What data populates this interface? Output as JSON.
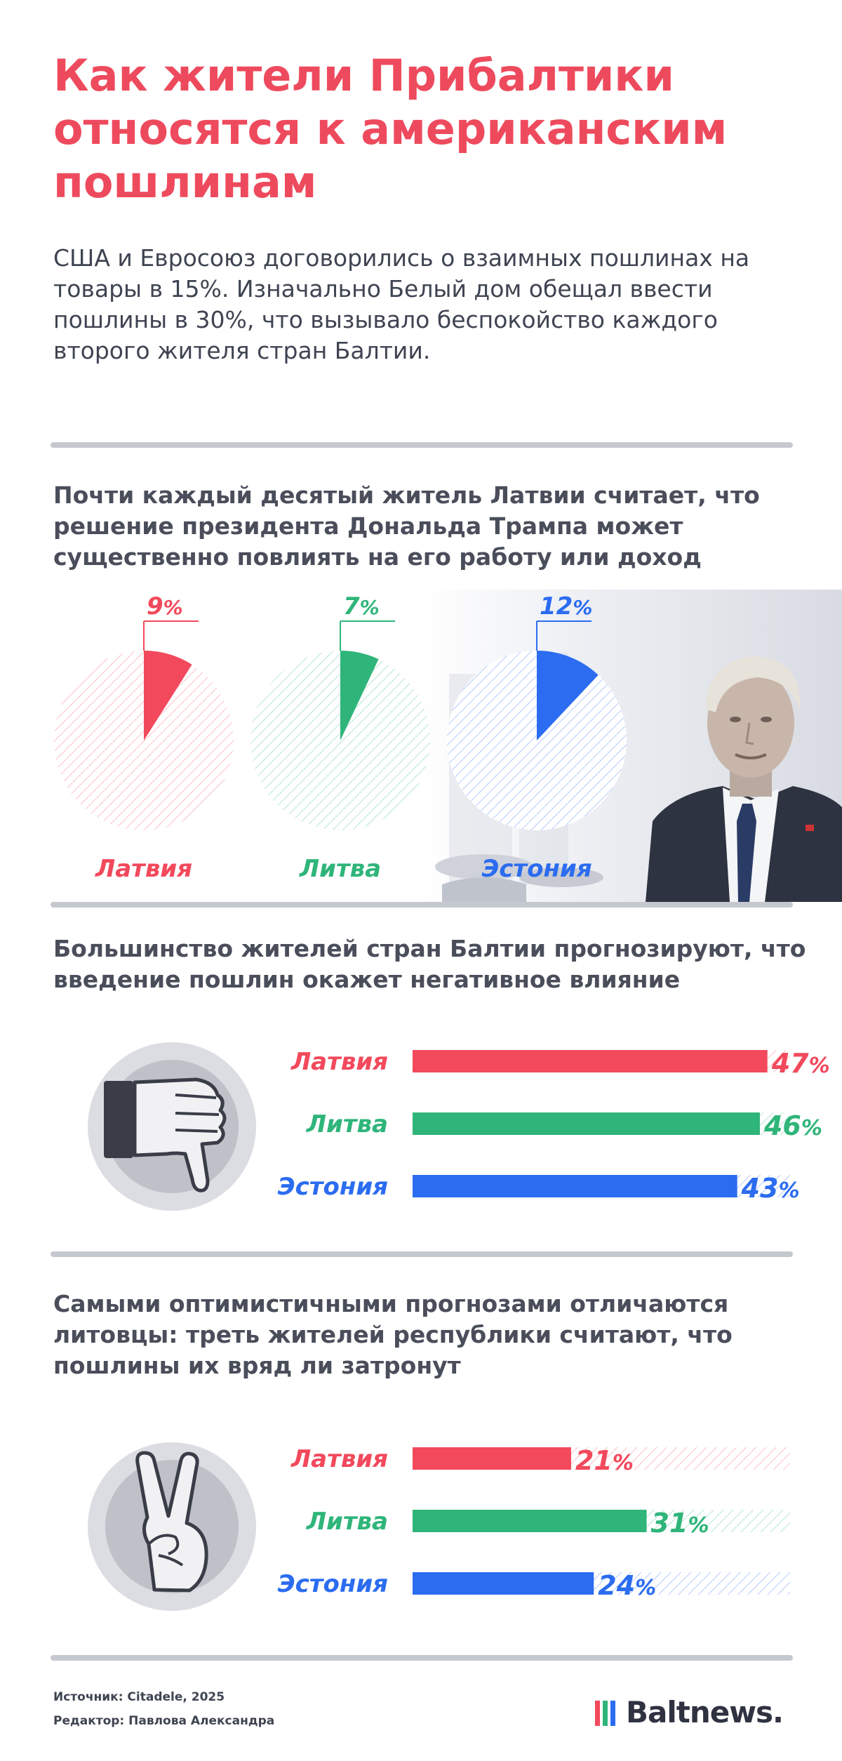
{
  "title": "Как жители Прибалтики относятся к американским пошлинам",
  "intro": "США и Евросоюз договорились о взаимных пошлинах на товары в 15%. Изначально Белый дом обещал ввести пошлины в 30%, что вызывало беспокойство каждого второго жителя стран Балтии.",
  "colors": {
    "latvia": "#f2495c",
    "lithuania": "#2fb57a",
    "estonia": "#2b6cf0",
    "title": "#ee4a5d"
  },
  "chart_data": [
    {
      "type": "pie",
      "title": "Почти каждый десятый житель Латвии считает, что решение президента Дональда Трампа может существенно повлиять на его работу или доход",
      "categories": [
        "Латвия",
        "Литва",
        "Эстония"
      ],
      "values": [
        9,
        7,
        12
      ],
      "value_labels": [
        "9",
        "7",
        "12"
      ],
      "unit": "%"
    },
    {
      "type": "bar",
      "title": "Большинство жителей стран Балтии прогнозируют, что введение пошлин окажет негативное влияние",
      "categories": [
        "Латвия",
        "Литва",
        "Эстония"
      ],
      "values": [
        47,
        46,
        43
      ],
      "value_labels": [
        "47",
        "46",
        "43"
      ],
      "unit": "%",
      "icon": "thumbs-down-icon"
    },
    {
      "type": "bar",
      "title": "Самыми оптимистичными прогнозами отличаются литовцы: треть жителей республики считают, что пошлины их вряд ли затронут",
      "categories": [
        "Латвия",
        "Литва",
        "Эстония"
      ],
      "values": [
        21,
        31,
        24
      ],
      "value_labels": [
        "21",
        "31",
        "24"
      ],
      "unit": "%",
      "icon": "victory-hand-icon"
    }
  ],
  "footer": {
    "source": "Источник: Citadele, 2025",
    "editor": "Редактор: Павлова Александра",
    "logo": "Baltnews."
  }
}
